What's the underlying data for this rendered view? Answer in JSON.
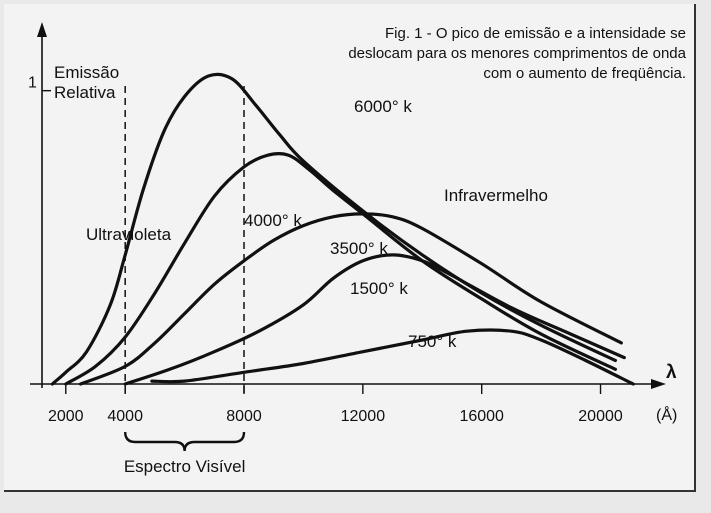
{
  "caption": {
    "line1": "Fig. 1 - O pico de emissão e a intensidade se",
    "line2": "deslocam para os menores comprimentos de onda",
    "line3": "com o aumento de freqüência."
  },
  "chart_data": {
    "type": "line",
    "title": "Fig. 1 - O pico de emissão e a intensidade se deslocam para os menores comprimentos de onda com o aumento de freqüência.",
    "ylabel_lines": [
      "Emissão",
      "Relativa"
    ],
    "y_tick_label": "1",
    "y_tick_value": 1,
    "x_axis_symbol": "λ",
    "x_unit": "(Å)",
    "xlim": [
      1200,
      21800
    ],
    "ylim": [
      0,
      1.2
    ],
    "x_ticks": [
      2000,
      4000,
      8000,
      12000,
      16000,
      20000
    ],
    "x_tick_labels": [
      "2000",
      "4000",
      "8000",
      "12000",
      "16000",
      "20000"
    ],
    "visible_band": {
      "from": 4000,
      "to": 8000,
      "label": "Espectro Visível"
    },
    "region_labels": {
      "ultraviolet": "Ultravioleta",
      "infrared": "Infravermelho"
    },
    "series": [
      {
        "name": "6000° k",
        "points": [
          [
            1550,
            0.0
          ],
          [
            2000,
            0.04
          ],
          [
            2700,
            0.11
          ],
          [
            3500,
            0.27
          ],
          [
            4000,
            0.44
          ],
          [
            4600,
            0.66
          ],
          [
            5300,
            0.86
          ],
          [
            6000,
            0.98
          ],
          [
            6800,
            1.05
          ],
          [
            7600,
            1.04
          ],
          [
            8400,
            0.95
          ],
          [
            9200,
            0.85
          ],
          [
            10000,
            0.76
          ],
          [
            12000,
            0.59
          ],
          [
            14000,
            0.44
          ],
          [
            16000,
            0.31
          ],
          [
            18000,
            0.2
          ],
          [
            20500,
            0.08
          ]
        ]
      },
      {
        "name": "4000° k",
        "points": [
          [
            2000,
            0.0
          ],
          [
            3000,
            0.06
          ],
          [
            4000,
            0.16
          ],
          [
            5000,
            0.31
          ],
          [
            6000,
            0.48
          ],
          [
            7000,
            0.64
          ],
          [
            8000,
            0.74
          ],
          [
            8800,
            0.78
          ],
          [
            9500,
            0.78
          ],
          [
            10200,
            0.73
          ],
          [
            11000,
            0.66
          ],
          [
            12000,
            0.58
          ],
          [
            14000,
            0.42
          ],
          [
            16000,
            0.29
          ],
          [
            18000,
            0.17
          ],
          [
            20500,
            0.05
          ]
        ]
      },
      {
        "name": "3500° k",
        "points": [
          [
            2500,
            0.0
          ],
          [
            4000,
            0.06
          ],
          [
            5000,
            0.14
          ],
          [
            6000,
            0.24
          ],
          [
            7000,
            0.34
          ],
          [
            8000,
            0.42
          ],
          [
            9000,
            0.49
          ],
          [
            10000,
            0.54
          ],
          [
            11000,
            0.57
          ],
          [
            12000,
            0.58
          ],
          [
            13000,
            0.57
          ],
          [
            14000,
            0.53
          ],
          [
            16000,
            0.41
          ],
          [
            18000,
            0.28
          ],
          [
            20700,
            0.14
          ]
        ]
      },
      {
        "name": "1500° k",
        "points": [
          [
            4000,
            0.0
          ],
          [
            5500,
            0.05
          ],
          [
            7000,
            0.11
          ],
          [
            8500,
            0.18
          ],
          [
            10000,
            0.27
          ],
          [
            11000,
            0.36
          ],
          [
            12000,
            0.42
          ],
          [
            13000,
            0.44
          ],
          [
            14000,
            0.42
          ],
          [
            15000,
            0.37
          ],
          [
            17000,
            0.26
          ],
          [
            19000,
            0.17
          ],
          [
            20800,
            0.09
          ]
        ]
      },
      {
        "name": "750° k",
        "points": [
          [
            4900,
            0.01
          ],
          [
            6000,
            0.01
          ],
          [
            8000,
            0.04
          ],
          [
            10000,
            0.07
          ],
          [
            12000,
            0.11
          ],
          [
            14000,
            0.15
          ],
          [
            15500,
            0.18
          ],
          [
            17000,
            0.18
          ],
          [
            18000,
            0.15
          ],
          [
            19500,
            0.08
          ],
          [
            21100,
            0.0
          ]
        ]
      }
    ],
    "grid": false,
    "legend": "none"
  }
}
